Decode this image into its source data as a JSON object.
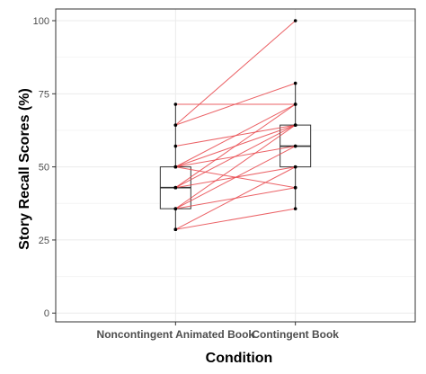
{
  "chart_data": {
    "type": "box",
    "xlabel": "Condition",
    "ylabel": "Story Recall Scores (%)",
    "ylim": [
      -3,
      104
    ],
    "y_ticks": [
      0,
      25,
      50,
      75,
      100
    ],
    "categories": [
      "Noncontingent Animated Book",
      "Contingent Book"
    ],
    "grid": true,
    "boxes": [
      {
        "category": "Noncontingent Animated Book",
        "q1": 35.7,
        "median": 42.9,
        "q3": 50,
        "whisker_low": 28.6,
        "whisker_high": 71.4
      },
      {
        "category": "Contingent Book",
        "q1": 50,
        "median": 57.1,
        "q3": 64.3,
        "whisker_low": 35.7,
        "whisker_high": 78.6
      }
    ],
    "pairs": [
      [
        71.4,
        71.4
      ],
      [
        64.3,
        100
      ],
      [
        64.3,
        78.6
      ],
      [
        57.1,
        64.3
      ],
      [
        50,
        71.4
      ],
      [
        50,
        64.3
      ],
      [
        50,
        57.1
      ],
      [
        50,
        42.9
      ],
      [
        42.9,
        71.4
      ],
      [
        42.9,
        64.3
      ],
      [
        42.9,
        50
      ],
      [
        35.7,
        64.3
      ],
      [
        35.7,
        57.1
      ],
      [
        35.7,
        42.9
      ],
      [
        28.6,
        50
      ],
      [
        28.6,
        35.7
      ]
    ],
    "colors": {
      "lines": "#e8474b",
      "points": "#000000",
      "box": "#333333",
      "grid": "#ebebeb",
      "panel_border": "#333333"
    }
  }
}
